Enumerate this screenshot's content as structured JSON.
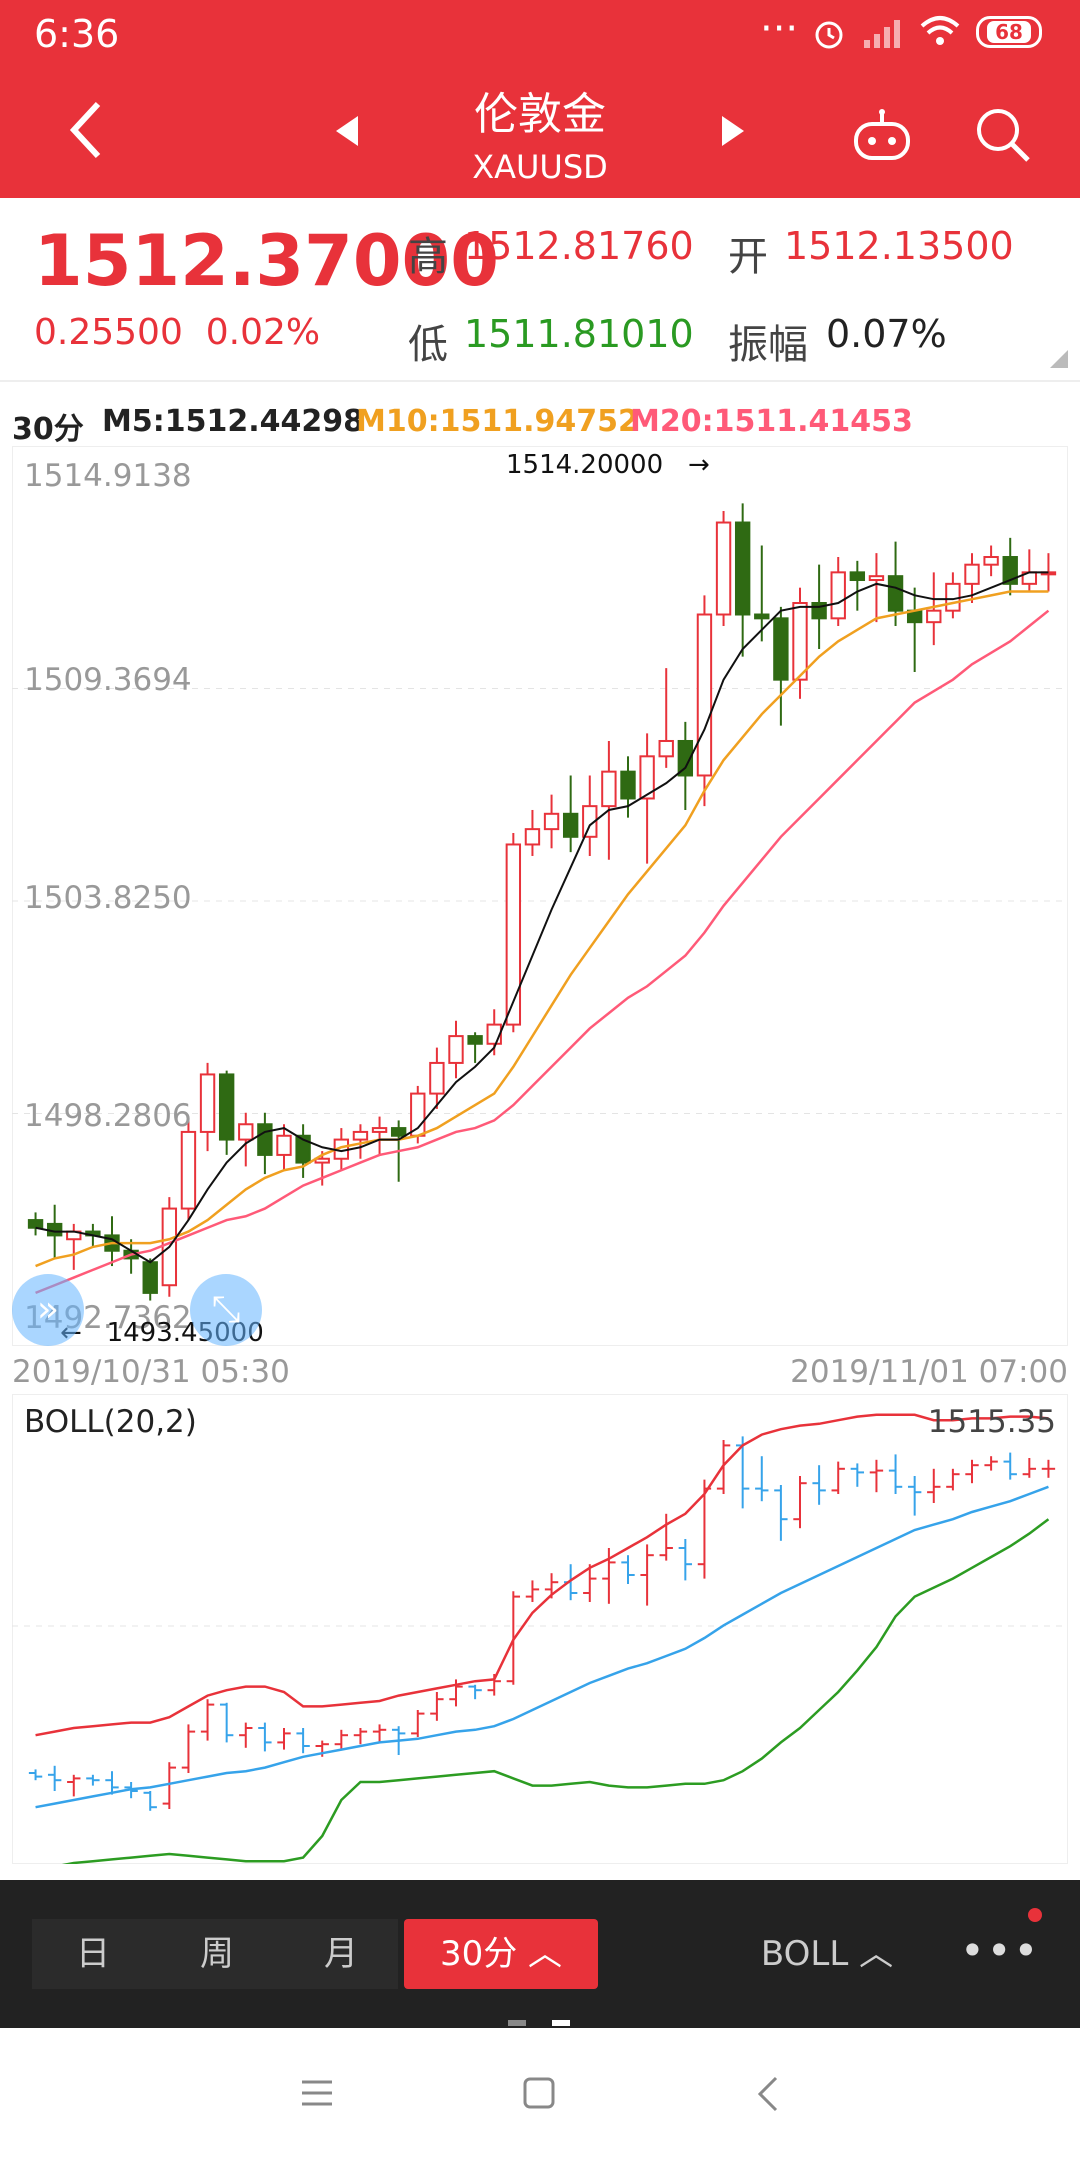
{
  "status_bar": {
    "time": "6:36",
    "battery": "68"
  },
  "header": {
    "title": "伦敦金",
    "subtitle": "XAUUSD"
  },
  "quote": {
    "price": "1512.37000",
    "change": "0.25500",
    "change_pct": "0.02%",
    "high_label": "高",
    "high": "1512.81760",
    "open_label": "开",
    "open": "1512.13500",
    "low_label": "低",
    "low": "1511.81010",
    "amp_label": "振幅",
    "amp": "0.07%"
  },
  "indicators": {
    "period": "30分",
    "m5": "M5:1512.44298",
    "m10": "M10:1511.94752",
    "m20": "M20:1511.41453"
  },
  "chart_data": {
    "type": "candlestick",
    "y_ticks": [
      "1514.9138",
      "1509.3694",
      "1503.8250",
      "1498.2806",
      "1492.7362"
    ],
    "ylim": [
      1492.7362,
      1514.9138
    ],
    "x_start": "2019/10/31 05:30",
    "x_end": "2019/11/01 07:00",
    "high_annotation": "1514.20000",
    "low_annotation": "1493.45000",
    "candles": [
      [
        1495.5,
        1495.3,
        1495.7,
        1495.1
      ],
      [
        1495.4,
        1495.1,
        1495.9,
        1494.5
      ],
      [
        1495.0,
        1495.2,
        1495.4,
        1494.2
      ],
      [
        1495.2,
        1495.1,
        1495.4,
        1494.8
      ],
      [
        1495.1,
        1494.7,
        1495.6,
        1494.3
      ],
      [
        1494.7,
        1494.5,
        1495.0,
        1494.1
      ],
      [
        1494.4,
        1493.6,
        1494.5,
        1493.4
      ],
      [
        1493.8,
        1495.8,
        1496.1,
        1493.5
      ],
      [
        1495.8,
        1497.8,
        1498.2,
        1495.5
      ],
      [
        1497.8,
        1499.3,
        1499.6,
        1497.3
      ],
      [
        1499.3,
        1497.6,
        1499.4,
        1497.2
      ],
      [
        1497.6,
        1498.0,
        1498.3,
        1496.9
      ],
      [
        1498.0,
        1497.2,
        1498.3,
        1496.7
      ],
      [
        1497.2,
        1497.7,
        1498.0,
        1496.8
      ],
      [
        1497.7,
        1497.0,
        1498.0,
        1496.6
      ],
      [
        1497.0,
        1497.1,
        1497.3,
        1496.4
      ],
      [
        1497.1,
        1497.6,
        1497.9,
        1496.8
      ],
      [
        1497.6,
        1497.8,
        1498.0,
        1497.1
      ],
      [
        1497.8,
        1497.9,
        1498.2,
        1497.2
      ],
      [
        1497.9,
        1497.7,
        1498.1,
        1496.5
      ],
      [
        1497.7,
        1498.8,
        1499.0,
        1497.5
      ],
      [
        1498.8,
        1499.6,
        1500.0,
        1498.4
      ],
      [
        1499.6,
        1500.3,
        1500.7,
        1499.2
      ],
      [
        1500.3,
        1500.1,
        1500.4,
        1499.6
      ],
      [
        1500.1,
        1500.6,
        1501.0,
        1499.8
      ],
      [
        1500.6,
        1505.3,
        1505.6,
        1500.4
      ],
      [
        1505.3,
        1505.7,
        1506.2,
        1505.0
      ],
      [
        1505.7,
        1506.1,
        1506.6,
        1505.2
      ],
      [
        1506.1,
        1505.5,
        1507.1,
        1505.1
      ],
      [
        1505.5,
        1506.3,
        1507.1,
        1505.0
      ],
      [
        1506.3,
        1507.2,
        1508.0,
        1504.9
      ],
      [
        1507.2,
        1506.5,
        1507.6,
        1506.0
      ],
      [
        1506.5,
        1507.6,
        1508.2,
        1504.8
      ],
      [
        1507.6,
        1508.0,
        1509.9,
        1507.3
      ],
      [
        1508.0,
        1507.1,
        1508.5,
        1506.2
      ],
      [
        1507.1,
        1511.3,
        1511.8,
        1506.3
      ],
      [
        1511.3,
        1513.7,
        1514.0,
        1511.0
      ],
      [
        1513.7,
        1511.3,
        1514.2,
        1510.2
      ],
      [
        1511.3,
        1511.2,
        1513.1,
        1510.6
      ],
      [
        1511.2,
        1509.6,
        1511.5,
        1508.4
      ],
      [
        1509.6,
        1511.6,
        1512.0,
        1509.1
      ],
      [
        1511.6,
        1511.2,
        1512.6,
        1510.4
      ],
      [
        1511.2,
        1512.4,
        1512.8,
        1511.0
      ],
      [
        1512.4,
        1512.2,
        1512.7,
        1511.4
      ],
      [
        1512.2,
        1512.3,
        1512.9,
        1511.1
      ],
      [
        1512.3,
        1511.4,
        1513.2,
        1511.0
      ],
      [
        1511.4,
        1511.1,
        1512.0,
        1509.8
      ],
      [
        1511.1,
        1511.4,
        1512.4,
        1510.5
      ],
      [
        1511.4,
        1512.1,
        1512.4,
        1511.2
      ],
      [
        1512.1,
        1512.6,
        1512.9,
        1511.6
      ],
      [
        1512.6,
        1512.8,
        1513.1,
        1512.3
      ],
      [
        1512.8,
        1512.1,
        1513.3,
        1511.8
      ],
      [
        1512.1,
        1512.4,
        1513.0,
        1511.9
      ],
      [
        1512.4,
        1512.4,
        1512.9,
        1511.9
      ]
    ],
    "m5_line": [
      1495.3,
      1495.2,
      1495.2,
      1495.1,
      1495.0,
      1494.7,
      1494.4,
      1494.8,
      1495.5,
      1496.3,
      1497.0,
      1497.5,
      1497.8,
      1497.9,
      1497.6,
      1497.4,
      1497.3,
      1497.4,
      1497.6,
      1497.6,
      1497.9,
      1498.5,
      1499.1,
      1499.5,
      1500.0,
      1501.2,
      1502.4,
      1503.6,
      1504.7,
      1505.8,
      1506.2,
      1506.3,
      1506.6,
      1506.9,
      1507.3,
      1508.3,
      1509.6,
      1510.4,
      1510.9,
      1511.4,
      1511.5,
      1511.5,
      1511.6,
      1511.9,
      1512.1,
      1512.0,
      1511.8,
      1511.7,
      1511.7,
      1511.8,
      1512.0,
      1512.2,
      1512.4,
      1512.4
    ],
    "m10_line": [
      1494.3,
      1494.5,
      1494.6,
      1494.8,
      1494.9,
      1494.9,
      1494.9,
      1495.0,
      1495.2,
      1495.5,
      1495.9,
      1496.3,
      1496.6,
      1496.8,
      1496.9,
      1497.2,
      1497.4,
      1497.5,
      1497.6,
      1497.6,
      1497.7,
      1497.9,
      1498.2,
      1498.5,
      1498.8,
      1499.5,
      1500.3,
      1501.1,
      1501.9,
      1502.6,
      1503.3,
      1504.0,
      1504.6,
      1505.2,
      1505.8,
      1506.7,
      1507.5,
      1508.1,
      1508.7,
      1509.2,
      1509.7,
      1510.2,
      1510.6,
      1510.9,
      1511.2,
      1511.3,
      1511.4,
      1511.5,
      1511.6,
      1511.7,
      1511.8,
      1511.9,
      1511.9,
      1511.9
    ],
    "m20_line": [
      1493.6,
      1493.8,
      1494.0,
      1494.2,
      1494.4,
      1494.6,
      1494.7,
      1494.9,
      1495.1,
      1495.3,
      1495.5,
      1495.6,
      1495.8,
      1496.1,
      1496.4,
      1496.6,
      1496.8,
      1497.0,
      1497.2,
      1497.3,
      1497.4,
      1497.6,
      1497.8,
      1497.9,
      1498.1,
      1498.5,
      1499.0,
      1499.5,
      1500.0,
      1500.5,
      1500.9,
      1501.3,
      1501.6,
      1502.0,
      1502.4,
      1503.0,
      1503.7,
      1504.3,
      1504.9,
      1505.5,
      1506.0,
      1506.5,
      1507.0,
      1507.5,
      1508.0,
      1508.5,
      1509.0,
      1509.3,
      1509.6,
      1510.0,
      1510.3,
      1510.6,
      1511.0,
      1511.4
    ],
    "boll": {
      "title": "BOLL(20,2)",
      "upper_value": "1515.35",
      "ylim": [
        1491.0,
        1516.0
      ],
      "upper": [
        1497.6,
        1497.8,
        1498.0,
        1498.1,
        1498.2,
        1498.3,
        1498.3,
        1498.6,
        1499.2,
        1499.8,
        1500.1,
        1500.3,
        1500.3,
        1500.0,
        1499.2,
        1499.2,
        1499.3,
        1499.4,
        1499.5,
        1499.8,
        1500.0,
        1500.2,
        1500.4,
        1500.6,
        1500.7,
        1502.9,
        1504.4,
        1505.4,
        1506.2,
        1506.9,
        1507.4,
        1508.0,
        1508.6,
        1509.3,
        1509.9,
        1511.0,
        1512.6,
        1513.7,
        1514.3,
        1514.6,
        1514.8,
        1514.9,
        1515.1,
        1515.3,
        1515.4,
        1515.4,
        1515.4,
        1515.1,
        1515.1,
        1515.2,
        1515.2,
        1515.3,
        1515.3,
        1515.2
      ],
      "middle": [
        1493.6,
        1493.8,
        1494.0,
        1494.2,
        1494.4,
        1494.6,
        1494.7,
        1494.9,
        1495.1,
        1495.3,
        1495.5,
        1495.6,
        1495.8,
        1496.1,
        1496.4,
        1496.6,
        1496.8,
        1497.0,
        1497.2,
        1497.3,
        1497.4,
        1497.6,
        1497.8,
        1497.9,
        1498.1,
        1498.5,
        1499.0,
        1499.5,
        1500.0,
        1500.5,
        1500.9,
        1501.3,
        1501.6,
        1502.0,
        1502.4,
        1503.0,
        1503.7,
        1504.3,
        1504.9,
        1505.5,
        1506.0,
        1506.5,
        1507.0,
        1507.5,
        1508.0,
        1508.5,
        1509.0,
        1509.3,
        1509.6,
        1510.0,
        1510.3,
        1510.6,
        1511.0,
        1511.4
      ],
      "lower": [
        1490.2,
        1490.3,
        1490.5,
        1490.6,
        1490.7,
        1490.8,
        1490.9,
        1491.0,
        1490.9,
        1490.8,
        1490.7,
        1490.6,
        1490.6,
        1490.6,
        1490.8,
        1492.0,
        1494.0,
        1495.0,
        1495.0,
        1495.1,
        1495.2,
        1495.3,
        1495.4,
        1495.5,
        1495.6,
        1495.2,
        1494.8,
        1494.8,
        1494.9,
        1495.0,
        1494.8,
        1494.7,
        1494.7,
        1494.8,
        1494.9,
        1494.9,
        1495.1,
        1495.6,
        1496.3,
        1497.2,
        1498.0,
        1499.0,
        1500.0,
        1501.2,
        1502.5,
        1504.2,
        1505.3,
        1505.8,
        1506.3,
        1506.9,
        1507.5,
        1508.1,
        1508.8,
        1509.6
      ]
    }
  },
  "tabs": [
    {
      "label": "日"
    },
    {
      "label": "周"
    },
    {
      "label": "月"
    },
    {
      "label": "30分 ︿"
    }
  ],
  "indicator_tab": "BOLL ︿",
  "colors": {
    "up": "#e8323a",
    "down": "#2f6a13",
    "m5": "#111111",
    "m10": "#f0a020",
    "m20": "#ff5a78",
    "boll_mid": "#36a3ea",
    "boll_low": "#2c9c22",
    "header": "#e8323a"
  }
}
